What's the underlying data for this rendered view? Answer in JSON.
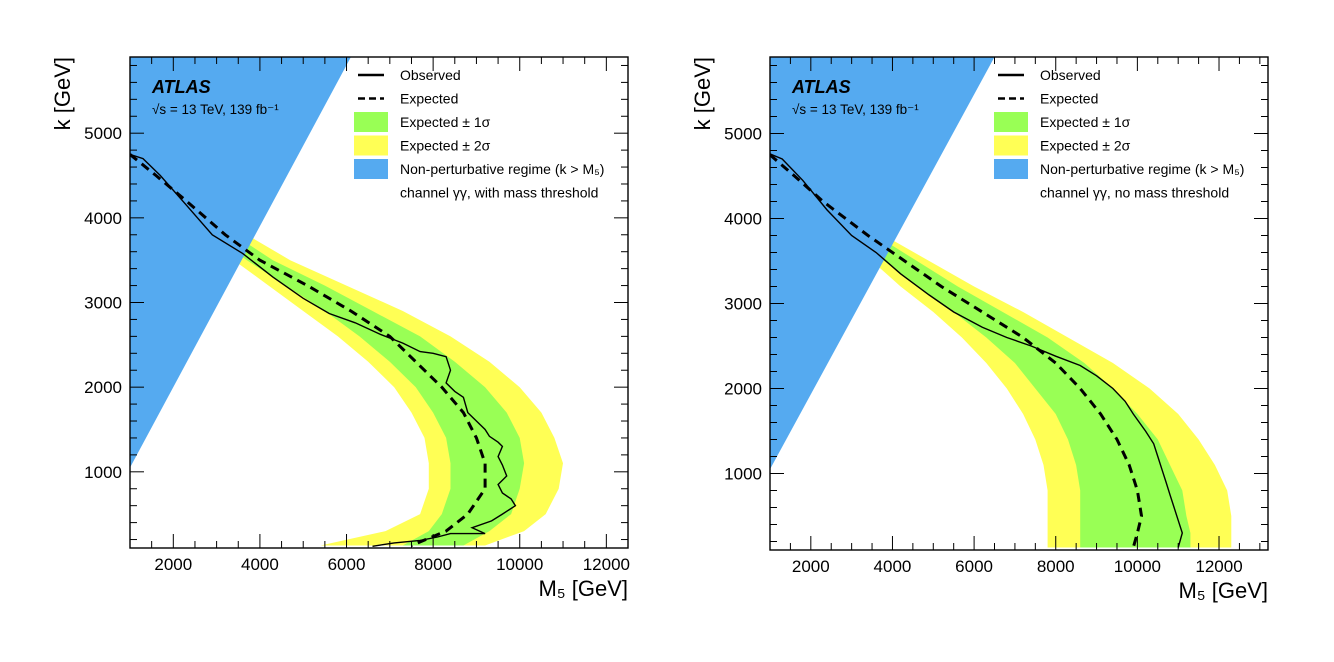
{
  "chart_data": [
    {
      "type": "area",
      "experiment": "ATLAS",
      "energy_label": "√s = 13 TeV, 139 fb⁻¹",
      "xlabel": "M₅ [GeV]",
      "ylabel": "k [GeV]",
      "xlim": [
        1000,
        12500
      ],
      "ylim": [
        100,
        5900
      ],
      "xticks": [
        2000,
        4000,
        6000,
        8000,
        10000,
        12000
      ],
      "yticks": [
        1000,
        2000,
        3000,
        4000,
        5000
      ],
      "legend_placement": "top-right",
      "legend": [
        {
          "label": "Observed",
          "style": "solid-line"
        },
        {
          "label": "Expected",
          "style": "dashed-line"
        },
        {
          "label": "Expected  ± 1σ",
          "style": "box",
          "color": "#99ff55"
        },
        {
          "label": "Expected  ± 2σ",
          "style": "box",
          "color": "#ffff55"
        },
        {
          "label": "Non-perturbative regime (k > M₅)",
          "style": "box",
          "color": "#55aaf0"
        },
        {
          "label": "channel γγ, with mass threshold",
          "style": "text"
        }
      ],
      "colors": {
        "band_2sigma": "#ffff55",
        "band_1sigma": "#99ff55",
        "nonpert": "#55aaf0",
        "line": "#000000"
      },
      "nonpert_region": [
        [
          1000,
          1050
        ],
        [
          1000,
          5900
        ],
        [
          6100,
          5900
        ]
      ],
      "k": [
        5900,
        4750,
        4500,
        4200,
        3800,
        3500,
        3200,
        2900,
        2600,
        2300,
        2000,
        1700,
        1400,
        1100,
        800,
        500,
        300,
        130
      ],
      "expected_M5": [
        null,
        1000,
        1600,
        2300,
        3200,
        4000,
        5100,
        6100,
        7000,
        7600,
        8200,
        8700,
        9000,
        9200,
        9200,
        8800,
        8300,
        7500
      ],
      "band_1sigma_low": [
        null,
        1000,
        1500,
        2100,
        2900,
        3700,
        4600,
        5500,
        6300,
        7000,
        7600,
        8000,
        8300,
        8400,
        8400,
        8200,
        7900,
        7300
      ],
      "band_1sigma_high": [
        null,
        1000,
        1700,
        2500,
        3400,
        4300,
        5500,
        6600,
        7700,
        8500,
        9200,
        9700,
        10000,
        10100,
        10000,
        9800,
        9300,
        8700
      ],
      "band_2sigma_low": [
        null,
        1000,
        1400,
        1900,
        2700,
        3400,
        4200,
        5000,
        5800,
        6500,
        7100,
        7500,
        7800,
        7900,
        7900,
        7700,
        6900,
        5400
      ],
      "band_2sigma_high": [
        null,
        1000,
        1800,
        2700,
        3700,
        4700,
        6000,
        7300,
        8400,
        9300,
        10000,
        10500,
        10800,
        11000,
        10900,
        10600,
        10100,
        9200
      ],
      "observed": [
        [
          1000,
          4750
        ],
        [
          1300,
          4700
        ],
        [
          1700,
          4500
        ],
        [
          2300,
          4150
        ],
        [
          2900,
          3800
        ],
        [
          3600,
          3580
        ],
        [
          4300,
          3300
        ],
        [
          5000,
          3050
        ],
        [
          5600,
          2870
        ],
        [
          6200,
          2760
        ],
        [
          6800,
          2620
        ],
        [
          7300,
          2520
        ],
        [
          7700,
          2420
        ],
        [
          8000,
          2400
        ],
        [
          8300,
          2360
        ],
        [
          8400,
          2200
        ],
        [
          8300,
          2050
        ],
        [
          8500,
          1950
        ],
        [
          8700,
          1880
        ],
        [
          8800,
          1700
        ],
        [
          9000,
          1600
        ],
        [
          9200,
          1500
        ],
        [
          9300,
          1420
        ],
        [
          9500,
          1350
        ],
        [
          9600,
          1300
        ],
        [
          9500,
          1180
        ],
        [
          9600,
          1080
        ],
        [
          9700,
          950
        ],
        [
          9500,
          850
        ],
        [
          9600,
          750
        ],
        [
          9800,
          680
        ],
        [
          9900,
          600
        ],
        [
          9600,
          500
        ],
        [
          9350,
          420
        ],
        [
          8900,
          340
        ],
        [
          9200,
          270
        ],
        [
          8400,
          270
        ],
        [
          8100,
          230
        ],
        [
          7700,
          190
        ],
        [
          7100,
          160
        ],
        [
          6600,
          120
        ]
      ]
    },
    {
      "type": "area",
      "experiment": "ATLAS",
      "energy_label": "√s = 13 TeV, 139 fb⁻¹",
      "xlabel": "M₅ [GeV]",
      "ylabel": "k [GeV]",
      "xlim": [
        1000,
        13200
      ],
      "ylim": [
        100,
        5900
      ],
      "xticks": [
        2000,
        4000,
        6000,
        8000,
        10000,
        12000
      ],
      "yticks": [
        1000,
        2000,
        3000,
        4000,
        5000
      ],
      "legend_placement": "top-right",
      "legend": [
        {
          "label": "Observed",
          "style": "solid-line"
        },
        {
          "label": "Expected",
          "style": "dashed-line"
        },
        {
          "label": "Expected  ± 1σ",
          "style": "box",
          "color": "#99ff55"
        },
        {
          "label": "Expected  ± 2σ",
          "style": "box",
          "color": "#ffff55"
        },
        {
          "label": "Non-perturbative regime (k > M₅)",
          "style": "box",
          "color": "#55aaf0"
        },
        {
          "label": "channel γγ, no mass threshold",
          "style": "text"
        }
      ],
      "colors": {
        "band_2sigma": "#ffff55",
        "band_1sigma": "#99ff55",
        "nonpert": "#55aaf0",
        "line": "#000000"
      },
      "nonpert_region": [
        [
          1000,
          1050
        ],
        [
          1000,
          5900
        ],
        [
          6500,
          5900
        ]
      ],
      "k": [
        5900,
        4750,
        4500,
        4200,
        3800,
        3500,
        3200,
        2900,
        2600,
        2300,
        2000,
        1700,
        1400,
        1100,
        800,
        500,
        300,
        130
      ],
      "expected_M5": [
        null,
        1000,
        1600,
        2300,
        3400,
        4300,
        5200,
        6200,
        7200,
        8000,
        8600,
        9100,
        9500,
        9800,
        10000,
        10100,
        10000,
        9900
      ],
      "band_1sigma_low": [
        null,
        1000,
        1500,
        2100,
        3000,
        3800,
        4600,
        5500,
        6300,
        7000,
        7500,
        8000,
        8300,
        8500,
        8600,
        8600,
        8600,
        8600
      ],
      "band_1sigma_high": [
        null,
        1000,
        1700,
        2500,
        3600,
        4600,
        5600,
        6700,
        7800,
        8700,
        9400,
        10000,
        10500,
        10800,
        11100,
        11200,
        11300,
        11300
      ],
      "band_2sigma_low": [
        null,
        1000,
        1400,
        1900,
        2800,
        3500,
        4200,
        5000,
        5700,
        6300,
        6800,
        7200,
        7500,
        7700,
        7800,
        7800,
        7800,
        7800
      ],
      "band_2sigma_high": [
        null,
        1000,
        1800,
        2700,
        3800,
        4900,
        6000,
        7200,
        8300,
        9400,
        10300,
        11000,
        11500,
        11900,
        12200,
        12300,
        12300,
        12300
      ],
      "observed": [
        [
          1000,
          4760
        ],
        [
          1300,
          4700
        ],
        [
          1800,
          4450
        ],
        [
          2400,
          4100
        ],
        [
          3000,
          3800
        ],
        [
          3600,
          3600
        ],
        [
          4200,
          3350
        ],
        [
          4900,
          3100
        ],
        [
          5500,
          2900
        ],
        [
          6200,
          2720
        ],
        [
          6800,
          2600
        ],
        [
          7400,
          2500
        ],
        [
          8000,
          2380
        ],
        [
          8600,
          2270
        ],
        [
          9000,
          2150
        ],
        [
          9400,
          2000
        ],
        [
          9700,
          1850
        ],
        [
          9900,
          1700
        ],
        [
          10200,
          1500
        ],
        [
          10400,
          1350
        ],
        [
          10500,
          1200
        ],
        [
          10600,
          1050
        ],
        [
          10700,
          900
        ],
        [
          10800,
          750
        ],
        [
          10900,
          600
        ],
        [
          11000,
          450
        ],
        [
          11100,
          300
        ],
        [
          11000,
          130
        ]
      ]
    }
  ]
}
